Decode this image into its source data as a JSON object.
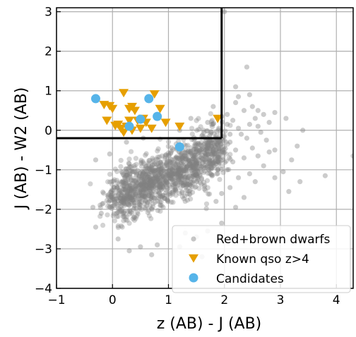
{
  "chart_data": {
    "type": "scatter",
    "xlabel": "z (AB) - J (AB)",
    "ylabel": "J (AB) - W2 (AB)",
    "xlim": [
      -1,
      4.3
    ],
    "ylim": [
      -4,
      3.1
    ],
    "xticks": [
      -1,
      0,
      1,
      2,
      3,
      4
    ],
    "yticks": [
      -4,
      -3,
      -2,
      -1,
      0,
      1,
      2,
      3
    ],
    "xtick_labels": [
      "−1",
      "0",
      "1",
      "2",
      "3",
      "4"
    ],
    "ytick_labels": [
      "−4",
      "−3",
      "−2",
      "−1",
      "0",
      "1",
      "2",
      "3"
    ],
    "grid": true,
    "legend": {
      "position": "lower-right",
      "entries": [
        "Red+brown dwarfs",
        "Known qso z>4",
        "Candidates"
      ]
    },
    "selection_box": {
      "x_max": 1.95,
      "y_min": -0.2
    },
    "series": [
      {
        "name": "Red+brown dwarfs",
        "marker": "circle",
        "color": "#808080",
        "core_cloud": {
          "x_range": [
            0.0,
            1.95
          ],
          "y_range": [
            -2.5,
            -0.5
          ],
          "center": [
            0.8,
            -1.3
          ]
        },
        "points": [
          [
            2.0,
            3.0
          ],
          [
            2.4,
            1.6
          ],
          [
            2.2,
            1.1
          ],
          [
            2.45,
            0.9
          ],
          [
            2.25,
            0.85
          ],
          [
            2.5,
            0.6
          ],
          [
            2.6,
            0.5
          ],
          [
            2.7,
            0.4
          ],
          [
            2.9,
            0.45
          ],
          [
            3.1,
            0.3
          ],
          [
            2.8,
            0.2
          ],
          [
            2.6,
            0.1
          ],
          [
            3.4,
            0.0
          ],
          [
            3.3,
            -0.4
          ],
          [
            2.9,
            -0.5
          ],
          [
            3.2,
            -0.75
          ],
          [
            3.05,
            -1.05
          ],
          [
            2.7,
            -0.9
          ],
          [
            2.55,
            -1.3
          ],
          [
            2.9,
            -1.2
          ],
          [
            3.35,
            -1.3
          ],
          [
            3.15,
            -1.55
          ],
          [
            3.8,
            -1.15
          ],
          [
            4.3,
            -0.65
          ],
          [
            2.35,
            -1.7
          ],
          [
            2.2,
            -1.95
          ],
          [
            1.95,
            -2.35
          ],
          [
            1.7,
            -2.55
          ],
          [
            1.5,
            -2.7
          ],
          [
            1.3,
            -2.6
          ],
          [
            0.8,
            -2.9
          ],
          [
            0.5,
            -2.95
          ],
          [
            0.1,
            -2.75
          ],
          [
            -0.3,
            -2.45
          ],
          [
            -0.2,
            -2.1
          ],
          [
            -0.35,
            -1.95
          ],
          [
            0.3,
            -3.05
          ],
          [
            0.7,
            -3.15
          ],
          [
            1.2,
            -2.95
          ],
          [
            1.6,
            -3.2
          ],
          [
            -0.3,
            -0.75
          ],
          [
            -0.05,
            -0.6
          ],
          [
            0.25,
            -0.3
          ],
          [
            0.55,
            -0.2
          ],
          [
            1.2,
            0.0
          ],
          [
            1.4,
            0.3
          ],
          [
            1.7,
            0.2
          ],
          [
            1.8,
            0.6
          ],
          [
            1.9,
            0.05
          ],
          [
            2.05,
            0.4
          ],
          [
            2.15,
            0.25
          ],
          [
            2.25,
            0.05
          ],
          [
            2.3,
            -0.1
          ],
          [
            2.4,
            -0.2
          ],
          [
            2.1,
            -0.3
          ],
          [
            2.2,
            -0.5
          ],
          [
            2.35,
            -0.7
          ],
          [
            2.15,
            -0.8
          ],
          [
            2.05,
            -1.0
          ],
          [
            2.25,
            -1.2
          ],
          [
            2.45,
            -1.1
          ],
          [
            2.1,
            -1.45
          ],
          [
            1.95,
            -1.6
          ],
          [
            1.85,
            -1.8
          ],
          [
            2.2,
            0.7
          ],
          [
            2.35,
            0.5
          ],
          [
            2.55,
            0.3
          ],
          [
            2.45,
            0.15
          ],
          [
            2.65,
            -0.05
          ],
          [
            2.75,
            -0.25
          ],
          [
            2.5,
            -0.45
          ],
          [
            2.6,
            -0.65
          ],
          [
            2.8,
            -0.55
          ],
          [
            2.05,
            0.15
          ],
          [
            1.95,
            0.35
          ],
          [
            2.1,
            -0.1
          ]
        ]
      },
      {
        "name": "Known qso z>4",
        "marker": "triangle-down",
        "color": "#e69f00",
        "points": [
          [
            -0.15,
            0.65
          ],
          [
            -0.05,
            0.62
          ],
          [
            0.0,
            0.55
          ],
          [
            0.2,
            0.95
          ],
          [
            0.3,
            0.55
          ],
          [
            0.35,
            0.6
          ],
          [
            0.4,
            0.5
          ],
          [
            0.55,
            0.3
          ],
          [
            0.75,
            0.92
          ],
          [
            0.85,
            0.55
          ],
          [
            -0.1,
            0.25
          ],
          [
            0.1,
            0.15
          ],
          [
            0.15,
            0.05
          ],
          [
            0.25,
            0.1
          ],
          [
            0.3,
            0.25
          ],
          [
            0.45,
            0.25
          ],
          [
            0.5,
            0.05
          ],
          [
            0.6,
            0.2
          ],
          [
            0.7,
            0.05
          ],
          [
            0.95,
            0.2
          ],
          [
            1.2,
            0.1
          ],
          [
            1.88,
            0.3
          ],
          [
            0.2,
            -0.05
          ],
          [
            0.35,
            0.0
          ],
          [
            0.05,
            0.12
          ]
        ]
      },
      {
        "name": "Candidates",
        "marker": "circle",
        "color": "#56b4e9",
        "points": [
          [
            -0.3,
            0.8
          ],
          [
            0.65,
            0.8
          ],
          [
            0.8,
            0.35
          ],
          [
            0.5,
            0.28
          ],
          [
            0.3,
            0.1
          ],
          [
            1.2,
            -0.42
          ]
        ]
      }
    ]
  }
}
